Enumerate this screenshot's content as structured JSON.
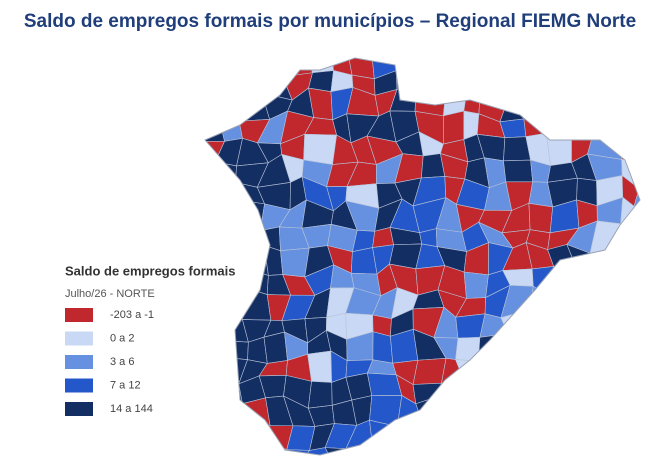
{
  "header": {
    "title": "Saldo de empregos formais por municípios – Regional FIEMG Norte"
  },
  "legend": {
    "title": "Saldo de empregos formais",
    "subtitle": "Julho/26 - NORTE",
    "items": [
      {
        "label": "-203 a -1",
        "color": "#c0282d"
      },
      {
        "label": "0 a 2",
        "color": "#c9d9f5"
      },
      {
        "label": "3 a 6",
        "color": "#6690e0"
      },
      {
        "label": "7 a 12",
        "color": "#2457c9"
      },
      {
        "label": "14 a 144",
        "color": "#132e63"
      }
    ]
  }
}
